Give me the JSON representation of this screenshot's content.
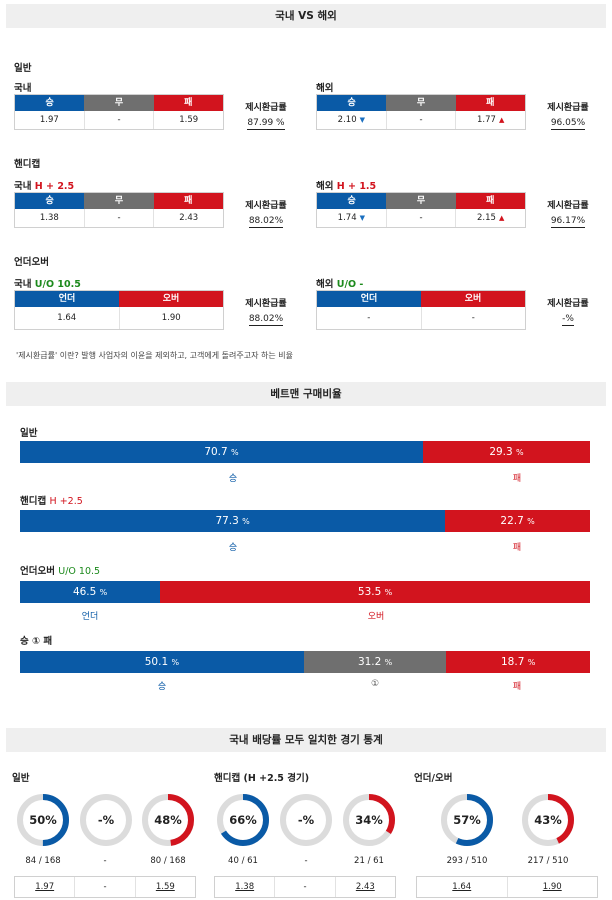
{
  "section1": {
    "title": "국내 VS 해외",
    "general": {
      "label": "일반",
      "domestic": {
        "title": "국내",
        "headers": [
          "승",
          "무",
          "패"
        ],
        "values": [
          "1.97",
          "-",
          "1.59"
        ],
        "ret_label": "제시환급률",
        "ret_value": "87.99 %"
      },
      "overseas": {
        "title": "해외",
        "headers": [
          "승",
          "무",
          "패"
        ],
        "values": [
          "2.10",
          "-",
          "1.77"
        ],
        "ret_label": "제시환급률",
        "ret_value": "96.05%"
      }
    },
    "handicap": {
      "label": "핸디캡",
      "domestic": {
        "title": "국내",
        "line": "H + 2.5",
        "headers": [
          "승",
          "무",
          "패"
        ],
        "values": [
          "1.38",
          "-",
          "2.43"
        ],
        "ret_label": "제시환급률",
        "ret_value": "88.02%"
      },
      "overseas": {
        "title": "해외",
        "line": "H + 1.5",
        "headers": [
          "승",
          "무",
          "패"
        ],
        "values": [
          "1.74",
          "-",
          "2.15"
        ],
        "ret_label": "제시환급률",
        "ret_value": "96.17%"
      }
    },
    "underover": {
      "label": "언더오버",
      "domestic": {
        "title": "국내",
        "line": "U/O 10.5",
        "headers": [
          "언더",
          "오버"
        ],
        "values": [
          "1.64",
          "1.90"
        ],
        "ret_label": "제시환급률",
        "ret_value": "88.02%"
      },
      "overseas": {
        "title": "해외",
        "line": "U/O -",
        "headers": [
          "언더",
          "오버"
        ],
        "values": [
          "-",
          "-"
        ],
        "ret_label": "제시환급률",
        "ret_value": "-%"
      }
    },
    "note": "'제시환급률' 이란? 발행 사업자의 이윤을 제외하고, 고객에게 돌려주고자 하는 비율"
  },
  "section2": {
    "title": "베트맨 구매비율",
    "general": {
      "label": "일반",
      "values": [
        "70.7",
        "29.3"
      ],
      "names": [
        "승",
        "패"
      ],
      "pct": "%"
    },
    "handicap": {
      "label": "핸디캡",
      "line": "H +2.5",
      "values": [
        "77.3",
        "22.7"
      ],
      "names": [
        "승",
        "패"
      ],
      "pct": "%"
    },
    "underover": {
      "label": "언더오버",
      "line": "U/O 10.5",
      "values": [
        "46.5",
        "53.5"
      ],
      "names": [
        "언더",
        "오버"
      ],
      "pct": "%"
    },
    "wdl": {
      "label": "승 ① 패",
      "values": [
        "50.1",
        "31.2",
        "18.7"
      ],
      "names": [
        "승",
        "①",
        "패"
      ],
      "pct": "%"
    }
  },
  "section3": {
    "title": "국내 배당률 모두 일치한 경기 통계",
    "general": {
      "label": "일반",
      "rings": [
        {
          "text": "50%",
          "value": 50,
          "color": "#0a5aa6",
          "count": "84 / 168"
        },
        {
          "text": "-%",
          "value": 0,
          "color": "#6f6f6f",
          "count": "-"
        },
        {
          "text": "48%",
          "value": 48,
          "color": "#d2141e",
          "count": "80 / 168"
        }
      ],
      "odds": [
        "1.97",
        "-",
        "1.59"
      ]
    },
    "handicap": {
      "label": "핸디캡 (H +2.5 경기)",
      "rings": [
        {
          "text": "66%",
          "value": 66,
          "color": "#0a5aa6",
          "count": "40 / 61"
        },
        {
          "text": "-%",
          "value": 0,
          "color": "#6f6f6f",
          "count": "-"
        },
        {
          "text": "34%",
          "value": 34,
          "color": "#d2141e",
          "count": "21 / 61"
        }
      ],
      "odds": [
        "1.38",
        "-",
        "2.43"
      ]
    },
    "underover": {
      "label": "언더/오버",
      "rings": [
        {
          "text": "57%",
          "value": 57,
          "color": "#0a5aa6",
          "count": "293 / 510"
        },
        {
          "text": "43%",
          "value": 43,
          "color": "#d2141e",
          "count": "217 / 510"
        }
      ],
      "odds": [
        "1.64",
        "1.90"
      ]
    }
  },
  "colors": {
    "blue": "#0a5aa6",
    "grey": "#6f6f6f",
    "red": "#d2141e",
    "ring_track": "#dcdcdc"
  }
}
